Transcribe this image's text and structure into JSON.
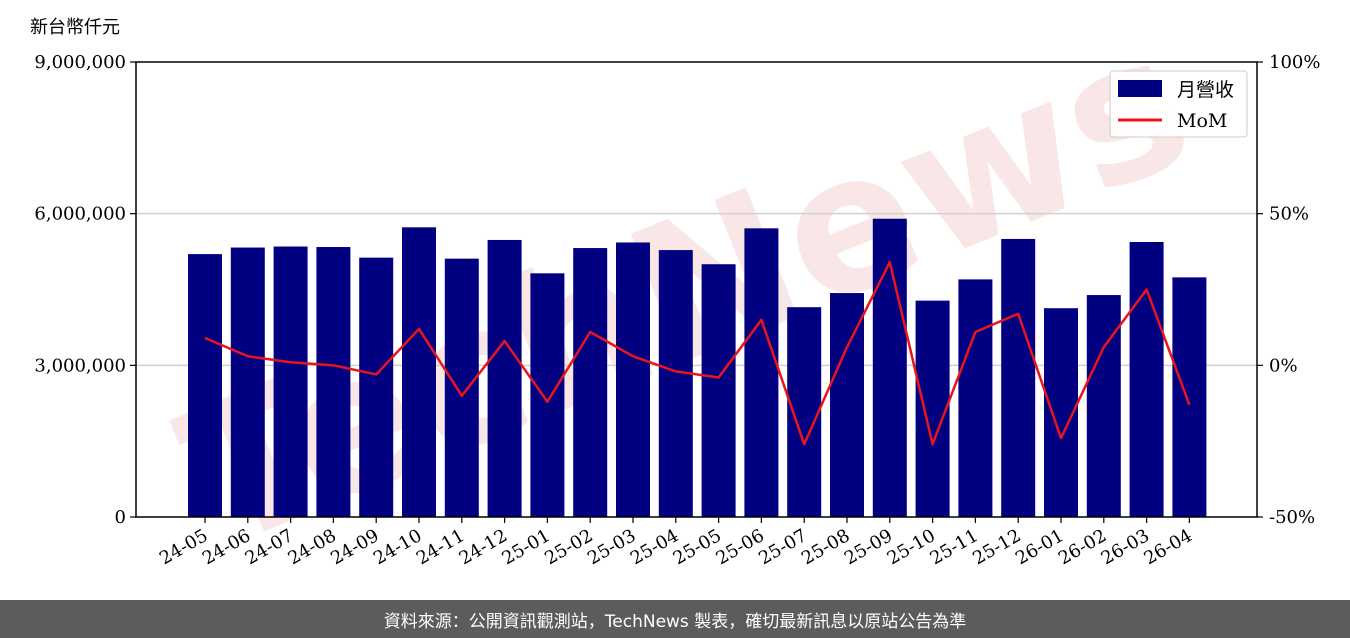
{
  "chart_data": {
    "type": "bar",
    "unit_label": "新台幣仟元",
    "categories": [
      "24-05",
      "24-06",
      "24-07",
      "24-08",
      "24-09",
      "24-10",
      "24-11",
      "24-12",
      "25-01",
      "25-02",
      "25-03",
      "25-04",
      "25-05",
      "25-06",
      "25-07",
      "25-08",
      "25-09",
      "25-10",
      "25-11",
      "25-12",
      "26-01",
      "26-02",
      "26-03",
      "26-04"
    ],
    "series": [
      {
        "name": "月營收",
        "type": "bar",
        "axis": "left",
        "color": "#000080",
        "values": [
          5200000,
          5330000,
          5350000,
          5340000,
          5130000,
          5730000,
          5110000,
          5480000,
          4820000,
          5320000,
          5430000,
          5280000,
          5000000,
          5710000,
          4150000,
          4430000,
          5900000,
          4280000,
          4700000,
          5500000,
          4130000,
          4390000,
          5440000,
          4740000
        ]
      },
      {
        "name": "MoM",
        "type": "line",
        "axis": "right",
        "color": "#e8141e",
        "values": [
          9,
          3,
          1,
          0,
          -3,
          12,
          -10,
          8,
          -12,
          11,
          3,
          -2,
          -4,
          15,
          -26,
          6,
          34,
          -26,
          11,
          17,
          -24,
          6,
          25,
          -13
        ]
      }
    ],
    "y_left": {
      "min": 0,
      "max": 9000000,
      "ticks": [
        0,
        3000000,
        6000000,
        9000000
      ],
      "tick_labels": [
        "0",
        "3,000,000",
        "6,000,000",
        "9,000,000"
      ]
    },
    "y_right": {
      "min": -50,
      "max": 100,
      "ticks": [
        -50,
        0,
        50,
        100
      ],
      "tick_labels": [
        "-50%",
        "0%",
        "50%",
        "100%"
      ]
    },
    "grid": "horizontal",
    "legend_position": "top-right",
    "watermark": "TechNews"
  },
  "footer": {
    "text": "資料來源：公開資訊觀測站，TechNews 製表，確切最新訊息以原站公告為準"
  }
}
